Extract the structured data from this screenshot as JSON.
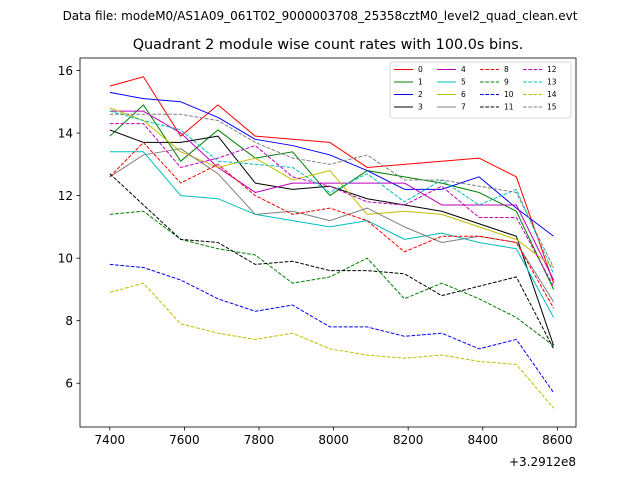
{
  "figure": {
    "suptitle": "Data file: modeM0/AS1A09_061T02_9000003708_25358cztM0_level2_quad_clean.evt"
  },
  "chart_data": {
    "type": "line",
    "title": "Quadrant 2 module wise count rates with 100.0s bins.",
    "xlabel": "",
    "ylabel": "",
    "x_offset_label": "+3.2912e8",
    "x": [
      7400,
      7490,
      7590,
      7690,
      7790,
      7890,
      7990,
      8090,
      8190,
      8290,
      8390,
      8490,
      8590
    ],
    "xlim": [
      7320,
      8650
    ],
    "ylim": [
      4.6,
      16.4
    ],
    "xticks": [
      7400,
      7600,
      7800,
      8000,
      8200,
      8400,
      8600
    ],
    "xtick_labels": [
      "7400",
      "7600",
      "7800",
      "8000",
      "8200",
      "8400",
      "8600"
    ],
    "yticks": [
      6,
      8,
      10,
      12,
      14,
      16
    ],
    "ytick_labels": [
      "6",
      "8",
      "10",
      "12",
      "14",
      "16"
    ],
    "grid": false,
    "legend": {
      "placement": "top-right",
      "columns": 4
    },
    "series": [
      {
        "name": "0",
        "color": "#ff0000",
        "dash": "solid",
        "values": [
          15.5,
          15.8,
          13.9,
          14.9,
          13.9,
          13.8,
          13.7,
          12.9,
          13.0,
          13.1,
          13.2,
          12.6,
          9.2
        ]
      },
      {
        "name": "1",
        "color": "#008000",
        "dash": "solid",
        "values": [
          13.9,
          14.9,
          13.1,
          14.1,
          13.2,
          13.4,
          12.0,
          12.8,
          12.6,
          12.4,
          12.1,
          11.5,
          9.0
        ]
      },
      {
        "name": "2",
        "color": "#0000ff",
        "dash": "solid",
        "values": [
          15.3,
          15.1,
          15.0,
          14.5,
          13.8,
          13.6,
          13.3,
          12.8,
          12.2,
          12.2,
          12.6,
          11.6,
          10.7
        ]
      },
      {
        "name": "3",
        "color": "#000000",
        "dash": "solid",
        "values": [
          14.1,
          13.7,
          13.7,
          13.9,
          12.4,
          12.2,
          12.3,
          11.9,
          11.7,
          11.5,
          11.1,
          10.7,
          7.2
        ]
      },
      {
        "name": "4",
        "color": "#bf00bf",
        "dash": "solid",
        "values": [
          14.7,
          14.7,
          14.0,
          12.9,
          12.1,
          12.4,
          12.4,
          12.4,
          12.4,
          11.7,
          11.7,
          11.7,
          9.3
        ]
      },
      {
        "name": "5",
        "color": "#00bfbf",
        "dash": "solid",
        "values": [
          13.4,
          13.4,
          12.0,
          11.9,
          11.4,
          11.2,
          11.0,
          11.2,
          10.6,
          10.8,
          10.5,
          10.3,
          8.1
        ]
      },
      {
        "name": "6",
        "color": "#bfbf00",
        "dash": "solid",
        "values": [
          14.8,
          14.4,
          13.4,
          12.9,
          13.2,
          12.5,
          12.8,
          11.4,
          11.5,
          11.4,
          11.0,
          10.6,
          9.7
        ]
      },
      {
        "name": "7",
        "color": "#808080",
        "dash": "solid",
        "values": [
          12.6,
          13.3,
          13.5,
          12.7,
          11.4,
          11.5,
          11.2,
          11.6,
          11.0,
          10.5,
          10.7,
          10.5,
          8.6
        ]
      },
      {
        "name": "8",
        "color": "#ff0000",
        "dash": "dashed",
        "values": [
          12.6,
          13.7,
          12.4,
          13.0,
          12.0,
          11.4,
          11.6,
          11.2,
          10.2,
          10.7,
          10.7,
          10.5,
          8.4
        ]
      },
      {
        "name": "9",
        "color": "#008000",
        "dash": "dashed",
        "values": [
          11.4,
          11.5,
          10.6,
          10.3,
          10.1,
          9.2,
          9.4,
          10.0,
          8.7,
          9.2,
          8.7,
          8.1,
          7.2
        ]
      },
      {
        "name": "10",
        "color": "#0000ff",
        "dash": "dashed",
        "values": [
          9.8,
          9.7,
          9.3,
          8.7,
          8.3,
          8.5,
          7.8,
          7.8,
          7.5,
          7.6,
          7.1,
          7.4,
          5.7
        ]
      },
      {
        "name": "11",
        "color": "#000000",
        "dash": "dashed",
        "values": [
          12.7,
          11.7,
          10.6,
          10.5,
          9.8,
          9.9,
          9.6,
          9.6,
          9.5,
          8.8,
          9.1,
          9.4,
          7.1
        ]
      },
      {
        "name": "12",
        "color": "#bf00bf",
        "dash": "dashed",
        "values": [
          14.3,
          14.3,
          12.9,
          13.2,
          13.6,
          12.6,
          12.3,
          11.8,
          11.7,
          12.3,
          11.3,
          11.3,
          9.1
        ]
      },
      {
        "name": "13",
        "color": "#00bfbf",
        "dash": "dashed",
        "values": [
          14.7,
          14.4,
          14.1,
          13.1,
          13.0,
          12.9,
          12.1,
          12.7,
          11.8,
          12.5,
          11.7,
          12.2,
          9.5
        ]
      },
      {
        "name": "14",
        "color": "#bfbf00",
        "dash": "dashed",
        "values": [
          8.9,
          9.2,
          7.9,
          7.6,
          7.4,
          7.6,
          7.1,
          6.9,
          6.8,
          6.9,
          6.7,
          6.6,
          5.2
        ]
      },
      {
        "name": "15",
        "color": "#808080",
        "dash": "dashed",
        "values": [
          14.6,
          14.6,
          14.6,
          14.4,
          13.7,
          13.2,
          13.0,
          13.3,
          12.5,
          12.5,
          12.3,
          12.1,
          9.7
        ]
      }
    ]
  }
}
